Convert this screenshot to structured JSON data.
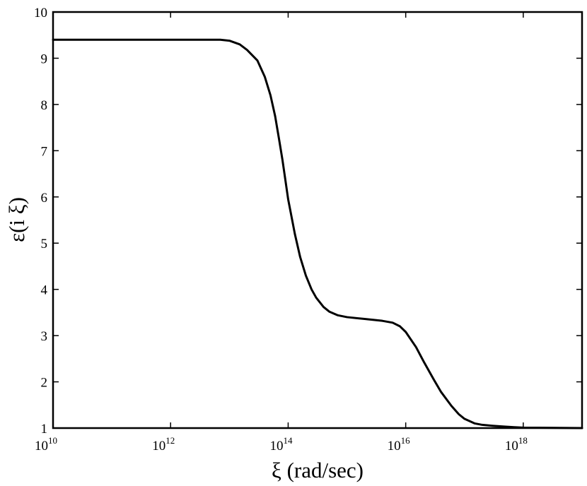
{
  "chart_data": {
    "type": "line",
    "title": "",
    "xlabel": "ξ (rad/sec)",
    "ylabel": "ε(i ξ)",
    "xscale": "log",
    "xlim": [
      10000000000.0,
      1e+19
    ],
    "ylim": [
      1,
      10
    ],
    "grid": false,
    "legend": "none",
    "line_color": "#000000",
    "x_ticks": [
      {
        "base": "10",
        "exp": "10",
        "value": 10000000000.0
      },
      {
        "base": "10",
        "exp": "12",
        "value": 1000000000000.0
      },
      {
        "base": "10",
        "exp": "14",
        "value": 100000000000000.0
      },
      {
        "base": "10",
        "exp": "16",
        "value": 1e+16
      },
      {
        "base": "10",
        "exp": "18",
        "value": 1e+18
      }
    ],
    "y_ticks": [
      "1",
      "2",
      "3",
      "4",
      "5",
      "6",
      "7",
      "8",
      "9",
      "10"
    ],
    "series": [
      {
        "x": [
          10000000000.0,
          100000000000.0,
          1000000000000.0,
          5000000000000.0,
          7000000000000.0,
          10000000000000.0,
          15000000000000.0,
          20000000000000.0,
          30000000000000.0,
          40000000000000.0,
          50000000000000.0,
          60000000000000.0,
          70000000000000.0,
          80000000000000.0,
          100000000000000.0,
          130000000000000.0,
          160000000000000.0,
          200000000000000.0,
          250000000000000.0,
          300000000000000.0,
          400000000000000.0,
          500000000000000.0,
          700000000000000.0,
          1000000000000000.0,
          2000000000000000.0,
          4000000000000000.0,
          6000000000000000.0,
          8000000000000000.0,
          1e+16,
          1.5e+16,
          2e+16,
          3e+16,
          4e+16,
          6e+16,
          8e+16,
          1e+17,
          1.5e+17,
          2e+17,
          3e+17,
          5e+17,
          7e+17,
          1e+18,
          1e+19
        ],
        "y": [
          9.4,
          9.4,
          9.4,
          9.4,
          9.4,
          9.38,
          9.3,
          9.18,
          8.95,
          8.6,
          8.2,
          7.75,
          7.25,
          6.8,
          5.95,
          5.2,
          4.7,
          4.3,
          4.0,
          3.82,
          3.62,
          3.52,
          3.44,
          3.4,
          3.36,
          3.32,
          3.28,
          3.2,
          3.08,
          2.75,
          2.45,
          2.05,
          1.78,
          1.48,
          1.3,
          1.2,
          1.1,
          1.07,
          1.05,
          1.03,
          1.02,
          1.01,
          1.0
        ]
      }
    ]
  }
}
